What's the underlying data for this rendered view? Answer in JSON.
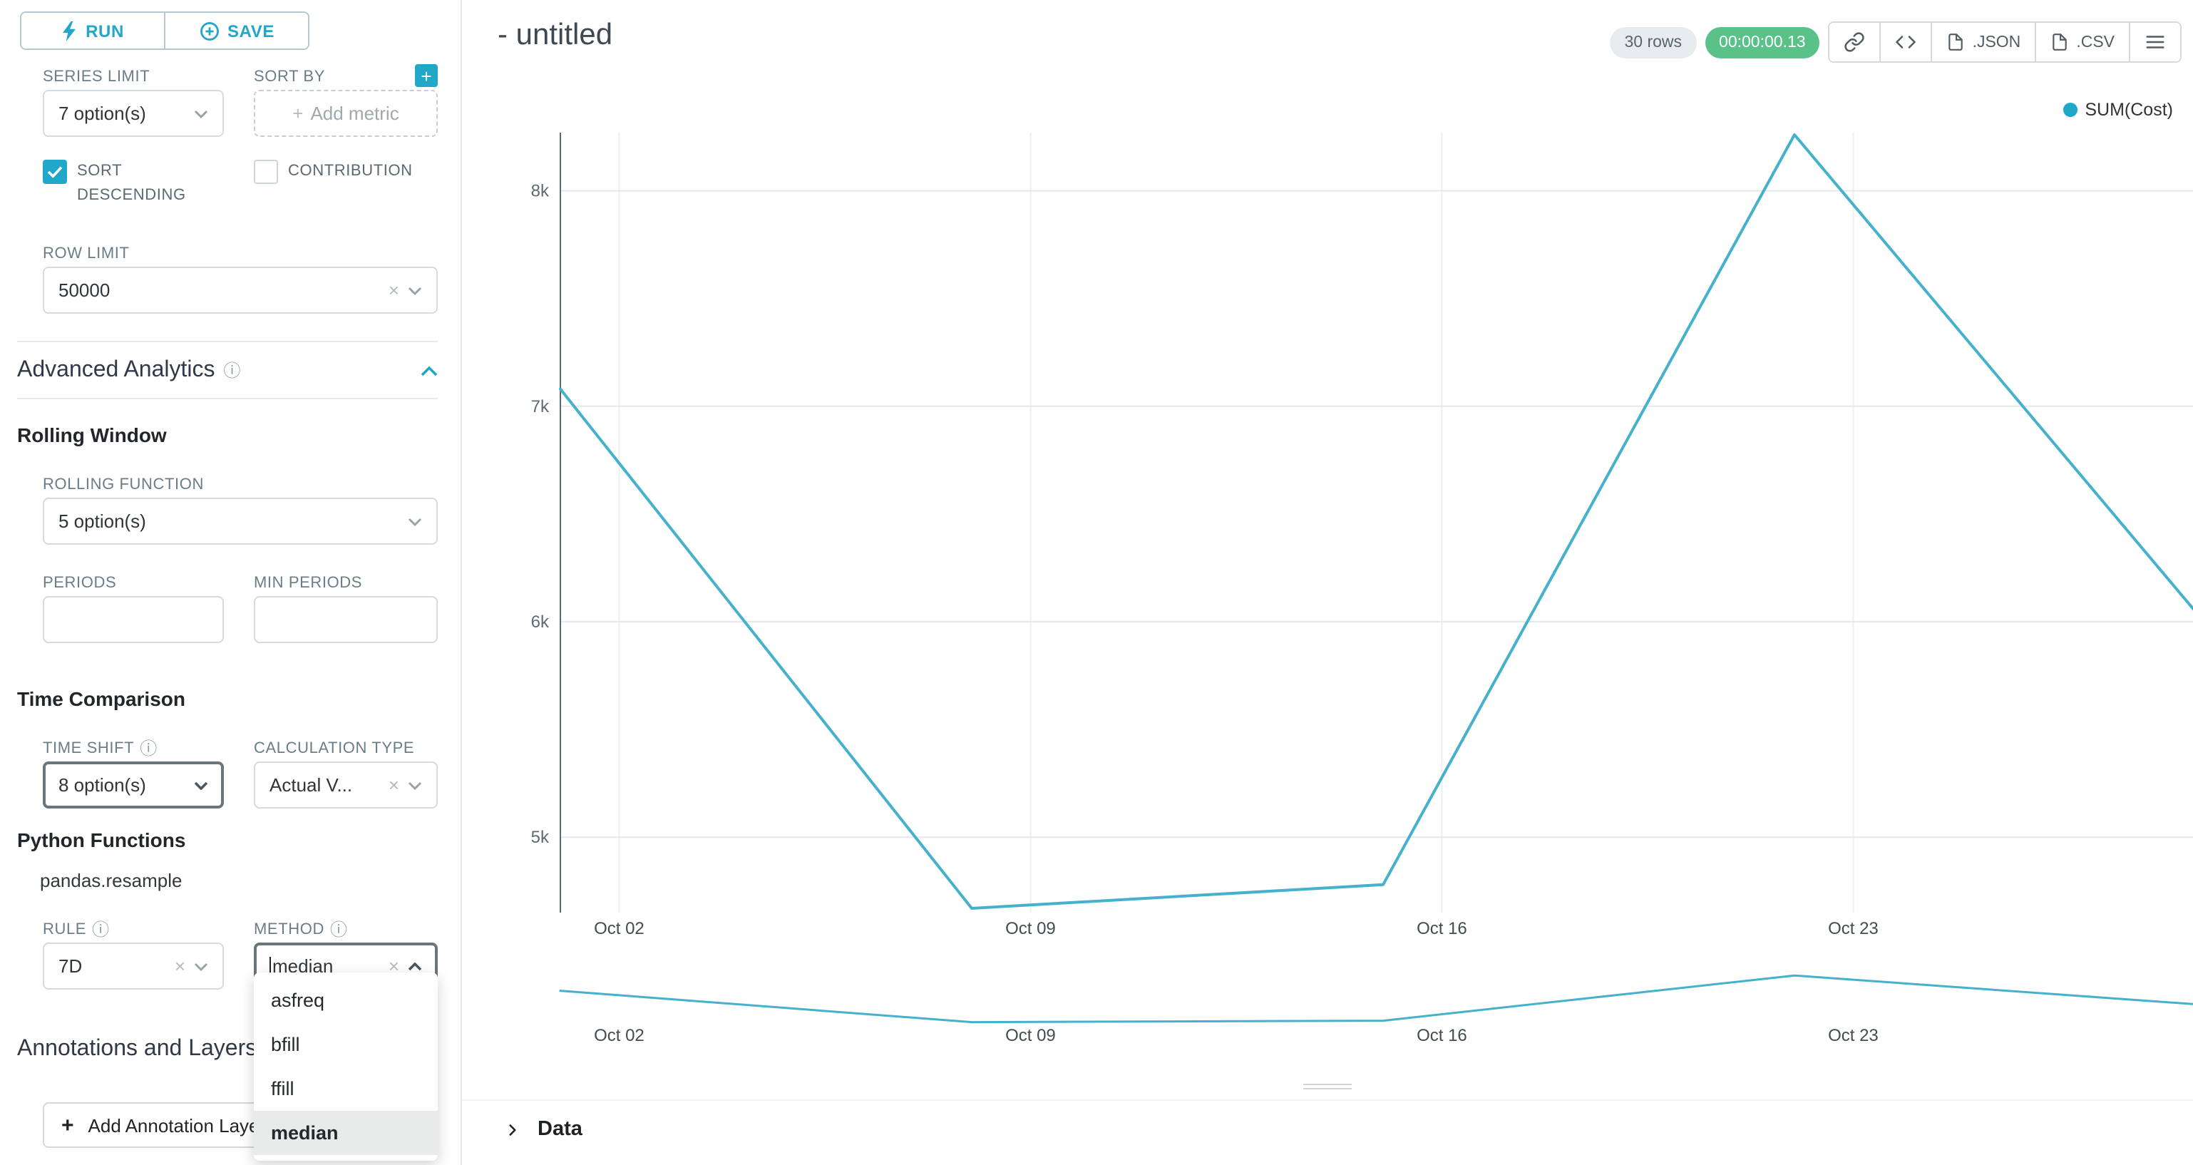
{
  "colors": {
    "primary": "#20a7c9",
    "line": "#45b1cd",
    "legend_dot": "#1fa8c9",
    "timer_bg": "#5ac189"
  },
  "sidebar": {
    "run_label": "RUN",
    "save_label": "SAVE",
    "series_limit": {
      "label": "SERIES LIMIT",
      "value": "7 option(s)"
    },
    "sort_by": {
      "label": "SORT BY",
      "placeholder": "Add metric"
    },
    "sort_descending": {
      "label": "SORT DESCENDING",
      "checked": true
    },
    "contribution": {
      "label": "CONTRIBUTION",
      "checked": false
    },
    "row_limit": {
      "label": "ROW LIMIT",
      "value": "50000"
    },
    "advanced_analytics_title": "Advanced Analytics",
    "rolling_window": {
      "title": "Rolling Window",
      "rolling_function": {
        "label": "ROLLING FUNCTION",
        "value": "5 option(s)"
      },
      "periods_label": "PERIODS",
      "min_periods_label": "MIN PERIODS"
    },
    "time_comparison": {
      "title": "Time Comparison",
      "time_shift": {
        "label": "TIME SHIFT",
        "value": "8 option(s)"
      },
      "calculation_type": {
        "label": "CALCULATION TYPE",
        "value": "Actual V..."
      }
    },
    "python_functions": {
      "title": "Python Functions",
      "subtitle": "pandas.resample",
      "rule": {
        "label": "RULE",
        "value": "7D"
      },
      "method": {
        "label": "METHOD",
        "value": "median",
        "selected": "median",
        "options": [
          "asfreq",
          "bfill",
          "ffill",
          "median"
        ]
      }
    },
    "annotations": {
      "title": "Annotations and Layers",
      "add_label": "Add Annotation Layer"
    }
  },
  "header": {
    "title": "- untitled",
    "rows_badge": "30 rows",
    "timer_badge": "00:00:00.13",
    "json_label": ".JSON",
    "csv_label": ".CSV"
  },
  "chart_data": {
    "type": "line",
    "title": "",
    "xlabel": "",
    "ylabel": "",
    "legend": [
      "SUM(Cost)"
    ],
    "legend_position": "top-right",
    "grid": true,
    "series": [
      {
        "name": "SUM(Cost)",
        "x_days": [
          0,
          7,
          14,
          21,
          28
        ],
        "values": [
          7080,
          4670,
          4780,
          8260,
          5990
        ]
      }
    ],
    "x_tick_days": [
      1,
      8,
      15,
      22
    ],
    "x_tick_labels": [
      "Oct 02",
      "Oct 09",
      "Oct 16",
      "Oct 23"
    ],
    "y_ticks": [
      5000,
      6000,
      7000,
      8000
    ],
    "y_tick_labels": [
      "5k",
      "6k",
      "7k",
      "8k"
    ],
    "ylim": [
      4650,
      8270
    ],
    "xlim_days": [
      0,
      28
    ]
  },
  "data_panel_label": "Data"
}
